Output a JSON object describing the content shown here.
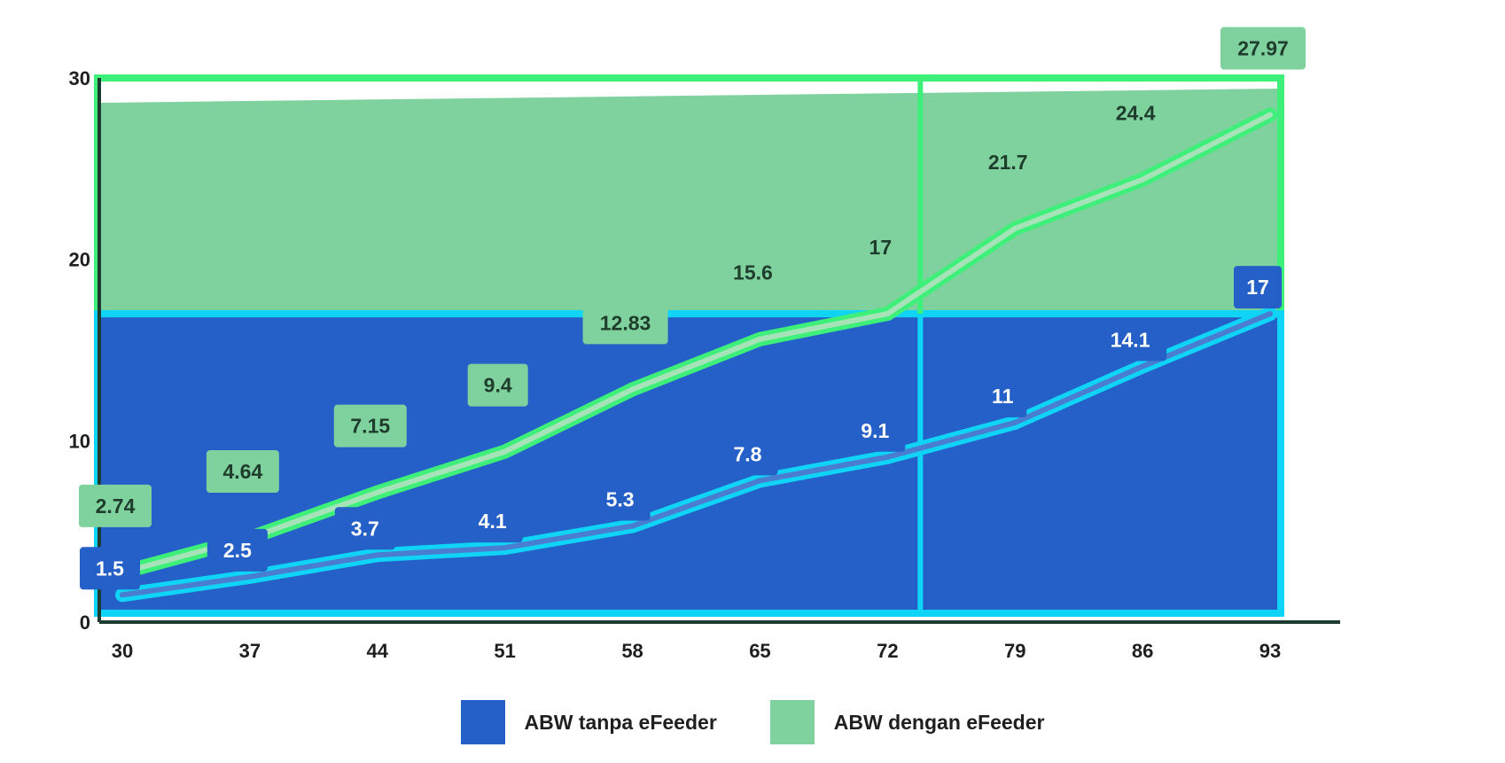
{
  "chart_data": {
    "type": "line",
    "title": "",
    "xlabel": "",
    "ylabel": "",
    "x": [
      "30",
      "37",
      "44",
      "51",
      "58",
      "65",
      "72",
      "79",
      "86",
      "93"
    ],
    "ylim": [
      0,
      30
    ],
    "yticks": [
      "0",
      "10",
      "20",
      "30"
    ],
    "grid": false,
    "legend_position": "bottom",
    "series": [
      {
        "name": "ABW tanpa eFeeder",
        "color": "#2560c8",
        "values": [
          1.5,
          2.5,
          3.7,
          4.1,
          5.3,
          7.8,
          9.1,
          11,
          14.1,
          17
        ],
        "labels": [
          "1.5",
          "2.5",
          "3.7",
          "4.1",
          "5.3",
          "7.8",
          "9.1",
          "11",
          "14.1",
          "17"
        ]
      },
      {
        "name": "ABW dengan eFeeder",
        "color": "#7fd19e",
        "values": [
          2.74,
          4.64,
          7.15,
          9.4,
          12.83,
          15.6,
          17,
          21.7,
          24.4,
          27.97
        ],
        "labels": [
          "2.74",
          "4.64",
          "7.15",
          "9.4",
          "12.83",
          "15.6",
          "17",
          "21.7",
          "24.4",
          "27.97"
        ]
      }
    ]
  }
}
